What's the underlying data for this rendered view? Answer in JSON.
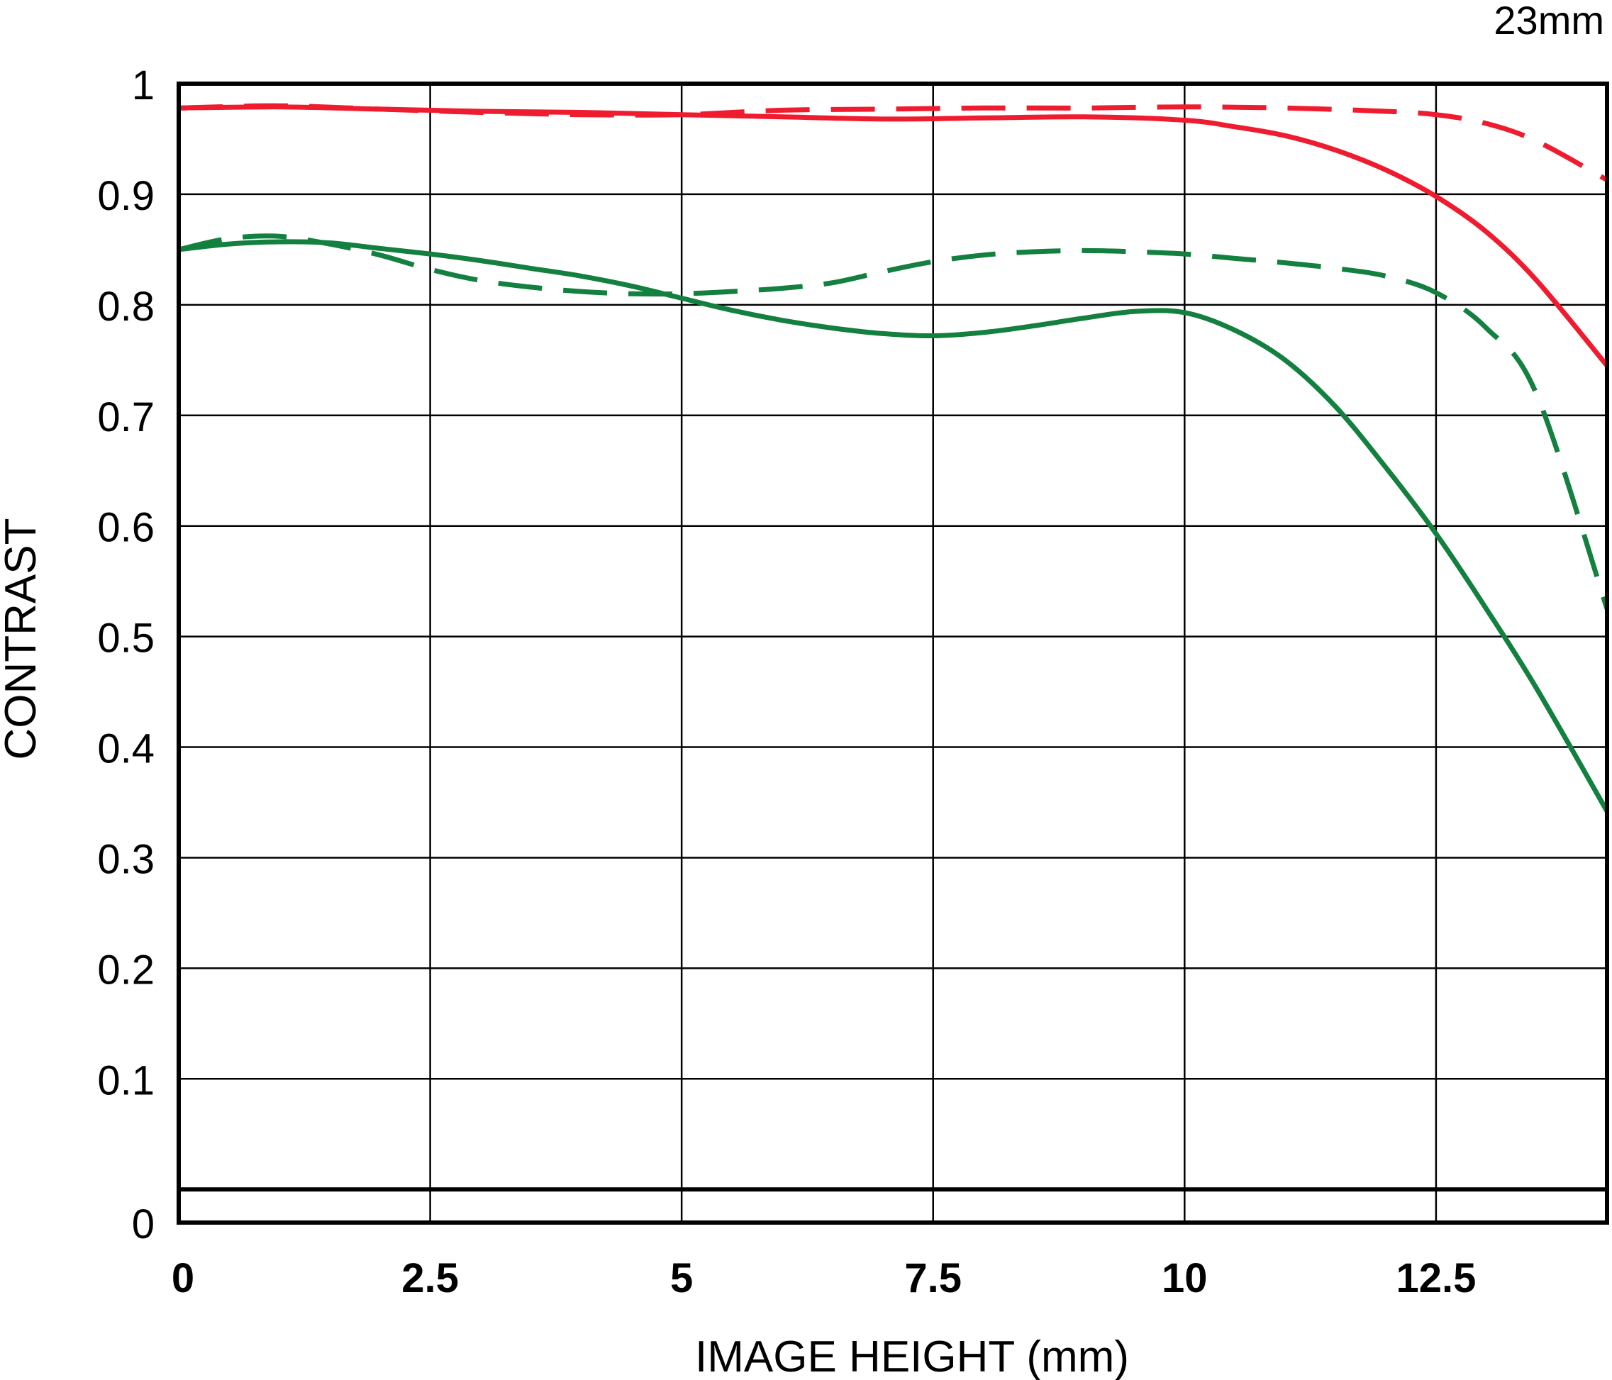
{
  "chart_data": {
    "type": "line",
    "title": "",
    "corner_label": "23mm",
    "xlabel": "IMAGE HEIGHT (mm)",
    "ylabel": "CONTRAST",
    "xlim": [
      0,
      14.2
    ],
    "ylim": [
      -0.03,
      1.0
    ],
    "x_ticks": [
      0,
      2.5,
      5,
      7.5,
      10,
      12.5
    ],
    "x_tick_labels": [
      "0",
      "2.5",
      "5",
      "7.5",
      "10",
      "12.5"
    ],
    "y_ticks": [
      1,
      0.9,
      0.8,
      0.7,
      0.6,
      0.5,
      0.4,
      0.3,
      0.2,
      0.1,
      0
    ],
    "y_tick_labels": [
      "1",
      "0.9",
      "0.8",
      "0.7",
      "0.6",
      "0.5",
      "0.4",
      "0.3",
      "0.2",
      "0.1",
      "0"
    ],
    "grid": true,
    "colors": {
      "red": "#ee1c2e",
      "green": "#138040",
      "grid": "#000000"
    },
    "series": [
      {
        "color": "#ee1c2e",
        "dash": "solid",
        "x": [
          0,
          1,
          2,
          3,
          4,
          5,
          6,
          7,
          8,
          9,
          10,
          10.5,
          11,
          11.5,
          12,
          12.5,
          13,
          13.5,
          14.2
        ],
        "y": [
          0.978,
          0.979,
          0.977,
          0.975,
          0.974,
          0.972,
          0.97,
          0.968,
          0.969,
          0.97,
          0.967,
          0.961,
          0.953,
          0.94,
          0.922,
          0.898,
          0.866,
          0.822,
          0.745
        ]
      },
      {
        "color": "#ee1c2e",
        "dash": "dashed",
        "x": [
          0,
          1,
          2,
          3,
          4,
          5,
          6,
          7,
          8,
          9,
          10,
          11,
          12,
          12.5,
          13,
          13.5,
          14.2
        ],
        "y": [
          0.978,
          0.98,
          0.977,
          0.974,
          0.972,
          0.972,
          0.976,
          0.977,
          0.978,
          0.978,
          0.979,
          0.978,
          0.975,
          0.972,
          0.964,
          0.948,
          0.913
        ]
      },
      {
        "color": "#138040",
        "dash": "solid",
        "x": [
          0,
          0.5,
          1,
          1.5,
          2,
          2.5,
          3,
          3.5,
          4,
          4.5,
          5,
          5.5,
          6,
          6.5,
          7,
          7.5,
          8,
          8.5,
          9,
          9.5,
          10,
          10.5,
          11,
          11.5,
          12,
          12.5,
          13,
          13.5,
          14.2
        ],
        "y": [
          0.85,
          0.855,
          0.857,
          0.856,
          0.851,
          0.846,
          0.84,
          0.833,
          0.826,
          0.817,
          0.806,
          0.795,
          0.786,
          0.779,
          0.774,
          0.772,
          0.775,
          0.781,
          0.788,
          0.794,
          0.793,
          0.777,
          0.75,
          0.708,
          0.653,
          0.593,
          0.525,
          0.453,
          0.342
        ]
      },
      {
        "color": "#138040",
        "dash": "dashed",
        "x": [
          0,
          0.5,
          1,
          1.5,
          2,
          2.5,
          3,
          3.5,
          4,
          4.5,
          5,
          5.5,
          6,
          6.5,
          7,
          7.5,
          8,
          8.5,
          9,
          9.5,
          10,
          10.5,
          11,
          11.5,
          12,
          12.5,
          13,
          13.5,
          14.2
        ],
        "y": [
          0.85,
          0.86,
          0.862,
          0.855,
          0.845,
          0.832,
          0.822,
          0.816,
          0.812,
          0.81,
          0.81,
          0.812,
          0.815,
          0.82,
          0.83,
          0.839,
          0.845,
          0.848,
          0.849,
          0.848,
          0.846,
          0.842,
          0.838,
          0.833,
          0.826,
          0.811,
          0.779,
          0.719,
          0.525
        ]
      }
    ]
  }
}
